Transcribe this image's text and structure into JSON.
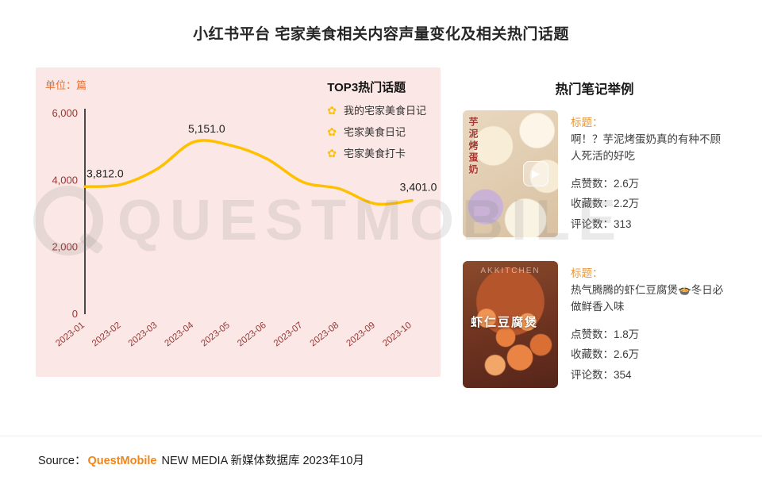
{
  "title": "小红书平台 宅家美食相关内容声量变化及相关热门话题",
  "colors": {
    "accent_orange": "#E97132",
    "line_yellow": "#FFC000",
    "axis_label_red": "#953735",
    "panel_pink": "#FBE7E5",
    "brand_orange": "#F08519"
  },
  "icons": {
    "topic": "✿",
    "play": "▶"
  },
  "chart": {
    "unit_label": "单位：篇",
    "legend_title": "TOP3热门话题",
    "topics": [
      {
        "label": "我的宅家美食日记"
      },
      {
        "label": "宅家美食日记"
      },
      {
        "label": "宅家美食打卡"
      }
    ]
  },
  "chart_data": {
    "type": "line",
    "x": [
      "2023-01",
      "2023-02",
      "2023-03",
      "2023-04",
      "2023-05",
      "2023-06",
      "2023-07",
      "2023-08",
      "2023-09",
      "2023-10"
    ],
    "series": [
      {
        "values": [
          3812,
          3880,
          4350,
          5151,
          5050,
          4650,
          3950,
          3750,
          3300,
          3401
        ]
      }
    ],
    "ylim": [
      0,
      6000
    ],
    "yticks": [
      0,
      2000,
      4000,
      6000
    ],
    "ylabel": "篇",
    "grid": false,
    "legend_position": "top-right",
    "line_color": "#FFC000",
    "annotations": [
      {
        "index": 0,
        "label": "3,812.0",
        "anchor": "start",
        "dx": 2
      },
      {
        "index": 3,
        "label": "5,151.0",
        "anchor": "middle",
        "dx": 16
      },
      {
        "index": 9,
        "label": "3,401.0",
        "anchor": "middle",
        "dx": 8
      }
    ]
  },
  "notes": {
    "heading": "热门笔记举例",
    "cards": [
      {
        "image_text": "芋泥烤蛋奶",
        "title_label": "标题：",
        "title": "啊！？芋泥烤蛋奶真的有种不顾人死活的好吃",
        "stats": [
          {
            "label": "点赞数：",
            "value": "2.6万"
          },
          {
            "label": "收藏数：",
            "value": "2.2万"
          },
          {
            "label": "评论数：",
            "value": "313"
          }
        ]
      },
      {
        "image_text": "虾仁豆腐煲",
        "image_brand": "AKKITCHEN",
        "title_label": "标题：",
        "title": "热气腾腾的虾仁豆腐煲🍲冬日必做鲜香入味",
        "stats": [
          {
            "label": "点赞数：",
            "value": "1.8万"
          },
          {
            "label": "收藏数：",
            "value": "2.6万"
          },
          {
            "label": "评论数：",
            "value": "354"
          }
        ]
      }
    ]
  },
  "watermark": {
    "text": "QUESTMOBILE"
  },
  "source": {
    "label": "Source：",
    "brand": "QuestMobile",
    "suffix": "NEW MEDIA 新媒体数据库 2023年10月"
  }
}
